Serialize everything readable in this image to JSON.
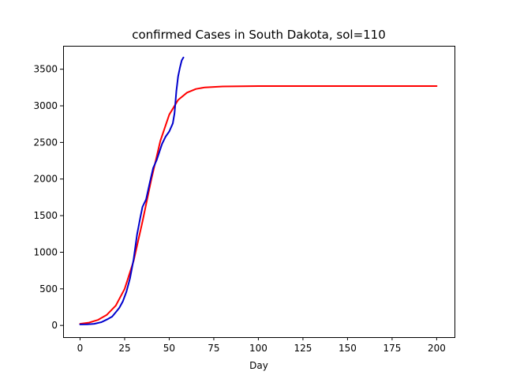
{
  "chart_data": {
    "type": "line",
    "title": "confirmed Cases in South Dakota, sol=110",
    "xlabel": "Day",
    "ylabel": "",
    "xlim": [
      -9.5,
      210
    ],
    "ylim": [
      -160,
      3820
    ],
    "x_ticks": [
      0,
      25,
      50,
      75,
      100,
      125,
      150,
      175,
      200
    ],
    "y_ticks": [
      0,
      500,
      1000,
      1500,
      2000,
      2500,
      3000,
      3500
    ],
    "grid": false,
    "legend": "none",
    "series": [
      {
        "color": "#ff0000",
        "points": [
          [
            0,
            22
          ],
          [
            5,
            38
          ],
          [
            10,
            75
          ],
          [
            15,
            145
          ],
          [
            20,
            270
          ],
          [
            25,
            500
          ],
          [
            30,
            880
          ],
          [
            35,
            1420
          ],
          [
            40,
            2000
          ],
          [
            45,
            2520
          ],
          [
            50,
            2880
          ],
          [
            55,
            3080
          ],
          [
            60,
            3180
          ],
          [
            65,
            3230
          ],
          [
            70,
            3252
          ],
          [
            80,
            3265
          ],
          [
            100,
            3270
          ],
          [
            150,
            3270
          ],
          [
            200,
            3270
          ]
        ]
      },
      {
        "color": "#0000cd",
        "points": [
          [
            0,
            14
          ],
          [
            4,
            16
          ],
          [
            8,
            22
          ],
          [
            12,
            45
          ],
          [
            15,
            80
          ],
          [
            18,
            120
          ],
          [
            20,
            180
          ],
          [
            22,
            240
          ],
          [
            24,
            330
          ],
          [
            26,
            460
          ],
          [
            28,
            640
          ],
          [
            30,
            900
          ],
          [
            32,
            1250
          ],
          [
            34,
            1500
          ],
          [
            35,
            1620
          ],
          [
            37,
            1720
          ],
          [
            39,
            1940
          ],
          [
            41,
            2150
          ],
          [
            43,
            2260
          ],
          [
            46,
            2480
          ],
          [
            48,
            2580
          ],
          [
            50,
            2650
          ],
          [
            52,
            2760
          ],
          [
            53,
            2900
          ],
          [
            54,
            3200
          ],
          [
            55,
            3400
          ],
          [
            56,
            3520
          ],
          [
            57,
            3620
          ],
          [
            58,
            3660
          ]
        ]
      }
    ]
  }
}
